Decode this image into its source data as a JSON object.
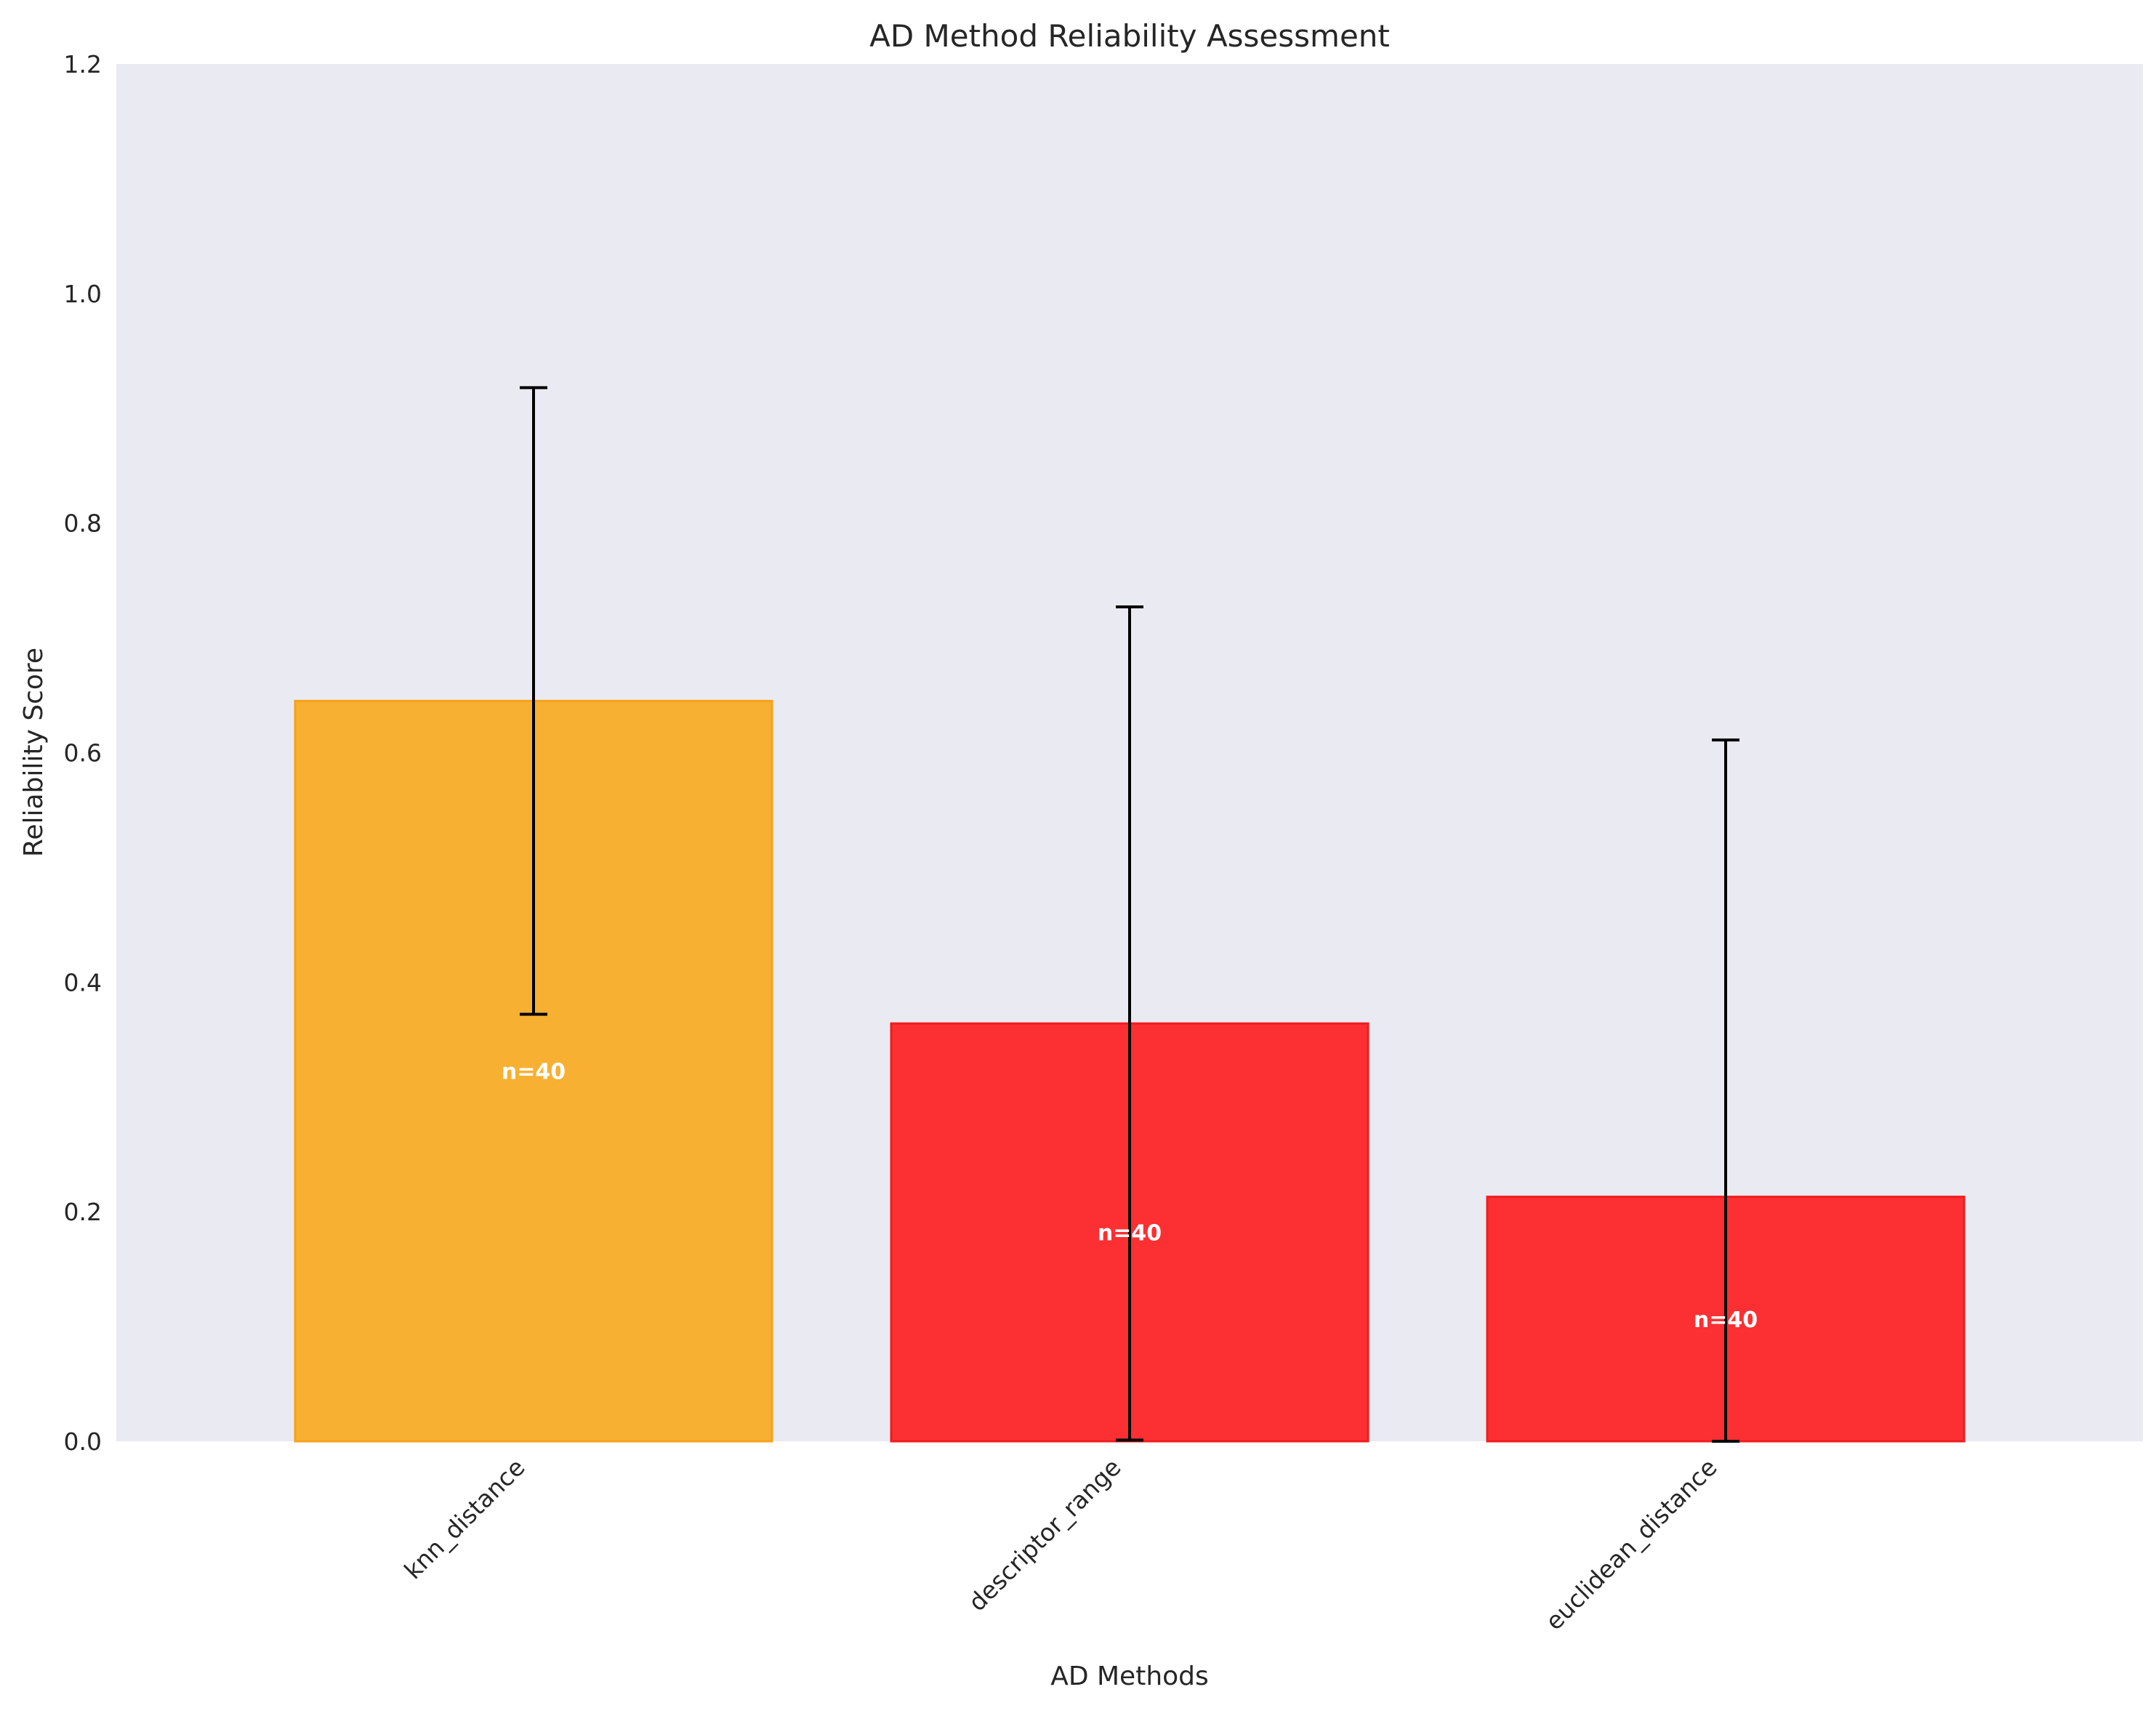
{
  "chart_data": {
    "type": "bar",
    "title": "AD Method Reliability Assessment",
    "xlabel": "AD Methods",
    "ylabel": "Reliability Score",
    "ylim": [
      0,
      1.2
    ],
    "yticks": [
      "0.0",
      "0.2",
      "0.4",
      "0.6",
      "0.8",
      "1.0",
      "1.2"
    ],
    "categories": [
      "knn_distance",
      "descriptor_range",
      "euclidean_distance"
    ],
    "values": [
      0.645,
      0.364,
      0.213
    ],
    "errors": [
      0.273,
      0.363,
      0.398
    ],
    "bar_labels": [
      "n=40",
      "n=40",
      "n=40"
    ],
    "colors": [
      "#f8b032",
      "#fc2f33",
      "#fc2f33"
    ],
    "edge_colors": [
      "#f7a21c",
      "#f01c1f",
      "#f01c1f"
    ],
    "grid": false,
    "legend": "none"
  },
  "style": {
    "plot_background": "#eaeaf2",
    "error_color": "#000000"
  }
}
